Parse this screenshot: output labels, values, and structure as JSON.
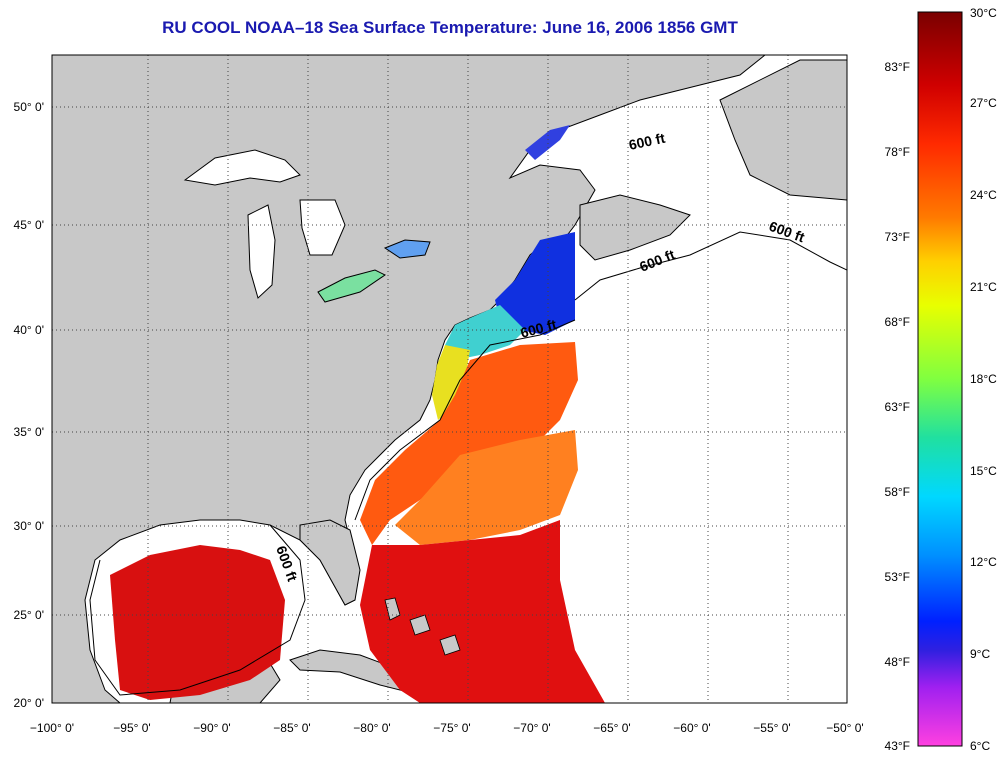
{
  "title": "RU COOL  NOAA–18  Sea Surface Temperature:  June 16, 2006 1856 GMT",
  "map": {
    "lon_labels": [
      "−100° 0'",
      "−95° 0'",
      "−90° 0'",
      "−85° 0'",
      "−80° 0'",
      "−75° 0'",
      "−70° 0'",
      "−65° 0'",
      "−60° 0'",
      "−55° 0'",
      "−50° 0'"
    ],
    "lat_labels": [
      "50° 0'",
      "45° 0'",
      "40° 0'",
      "35° 0'",
      "30° 0'",
      "25° 0'",
      "20° 0'"
    ],
    "contour_labels": [
      "600 ft",
      "600 ft",
      "600 ft",
      "600 ft",
      "600 ft"
    ],
    "colors": {
      "land": "#c8c8c8",
      "ocean_no_data": "#ffffff",
      "warm_sst": "#e01010",
      "cool_sst": "#1030e0"
    }
  },
  "colorbar": {
    "celsius_labels": [
      "30°C",
      "27°C",
      "24°C",
      "21°C",
      "18°C",
      "15°C",
      "12°C",
      "9°C",
      "6°C"
    ],
    "fahrenheit_labels": [
      "83°F",
      "78°F",
      "73°F",
      "68°F",
      "63°F",
      "58°F",
      "53°F",
      "48°F",
      "43°F"
    ],
    "gradient_stops": [
      "#7a0000",
      "#d00000",
      "#ff2a00",
      "#ff7a00",
      "#ffd000",
      "#e8ff00",
      "#80ff40",
      "#20e0a0",
      "#00d8ff",
      "#0090ff",
      "#0020ff",
      "#3020e0",
      "#a020f0",
      "#ff40e0"
    ]
  }
}
